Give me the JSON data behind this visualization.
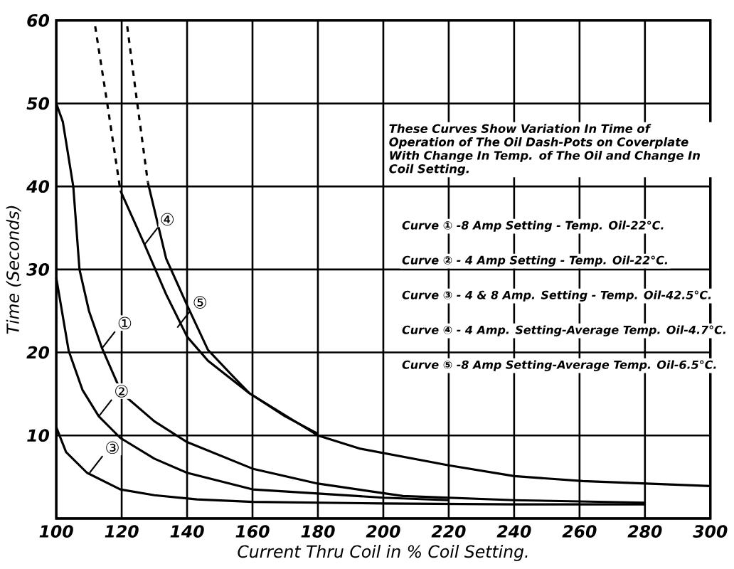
{
  "chart_data": {
    "type": "line",
    "xlabel": "Current Thru Coil in % Coil Setting.",
    "ylabel": "Time (Seconds)",
    "xlim": [
      100,
      300
    ],
    "ylim": [
      0,
      60
    ],
    "xticks": [
      100,
      120,
      140,
      160,
      180,
      200,
      220,
      240,
      260,
      280,
      300
    ],
    "yticks": [
      {
        "value": 0,
        "label": null
      },
      10,
      20,
      30,
      40,
      50,
      60
    ],
    "grid": true,
    "marker": "none",
    "series": [
      {
        "color": "#000000",
        "line_style": "solid",
        "x": [
          100,
          102,
          105.2,
          107.1,
          110,
          114,
          120,
          130,
          140,
          160,
          180,
          206,
          240,
          280
        ],
        "values": [
          50,
          47.8,
          40,
          30,
          25,
          20.5,
          15.1,
          11.7,
          9.2,
          6,
          4.2,
          2.7,
          2.2,
          1.9
        ]
      },
      {
        "color": "#000000",
        "line_style": "solid",
        "x": [
          100,
          103.8,
          108,
          113,
          119.6,
          130,
          140,
          160,
          180,
          200,
          220
        ],
        "values": [
          29,
          20.2,
          15.5,
          12.3,
          9.7,
          7.2,
          5.5,
          3.5,
          3.0,
          2.5,
          2.2
        ]
      },
      {
        "color": "#000000",
        "line_style": "solid",
        "x": [
          100,
          103,
          109.4,
          119.6,
          130,
          143,
          160,
          200,
          240,
          280
        ],
        "values": [
          11,
          8,
          5.5,
          3.5,
          2.8,
          2.3,
          2.0,
          1.8,
          1.7,
          1.7
        ]
      },
      {
        "color": "#000000",
        "line_style": "dashed",
        "x": [
          111.9,
          115.7,
          119.6
        ],
        "values": [
          59.3,
          49.7,
          39.5
        ]
      },
      {
        "color": "#000000",
        "line_style": "solid",
        "x": [
          119.6,
          127,
          133.6,
          140,
          146.4,
          159,
          180,
          193,
          220,
          240,
          261,
          300
        ],
        "values": [
          39.5,
          33,
          27,
          21.9,
          19,
          15.1,
          10,
          8.4,
          6.4,
          5.1,
          4.5,
          3.9
        ]
      },
      {
        "color": "#000000",
        "line_style": "dashed",
        "x": [
          121.7,
          124.3,
          128
        ],
        "values": [
          59.3,
          51.4,
          40.5
        ]
      },
      {
        "color": "#000000",
        "line_style": "solid",
        "x": [
          128,
          133.6,
          140,
          146.4,
          153.6,
          159,
          170,
          180
        ],
        "values": [
          40.5,
          31.3,
          25.7,
          20.3,
          17.3,
          15.1,
          12.3,
          10.2
        ]
      }
    ],
    "annotations": [
      "These Curves Show Variation In Time of Operation of The Oil Dash-Pots on Coverplate With Change In Temp. of The Oil and Change In Coil Setting.",
      "Curve ① -8 Amp Setting - Temp. Oil-22°C.",
      "Curve ② - 4 Amp Setting - Temp. Oil-22°C.",
      "Curve ③ - 4 & 8 Amp. Setting - Temp. Oil-42.5°C.",
      "Curve ④ - 4 Amp. Setting-Average Temp. Oil-4.7°C.",
      "Curve ⑤ -8 Amp Setting-Average Temp. Oil-6.5°C.",
      {
        "text": "①",
        "x": 114,
        "y": 20.5
      },
      {
        "text": "②",
        "x": 113,
        "y": 12.3
      },
      {
        "text": "③",
        "x": 110.2,
        "y": 5.5
      },
      {
        "text": "④",
        "x": 127,
        "y": 33
      },
      {
        "text": "⑤",
        "x": 137,
        "y": 23
      }
    ]
  }
}
